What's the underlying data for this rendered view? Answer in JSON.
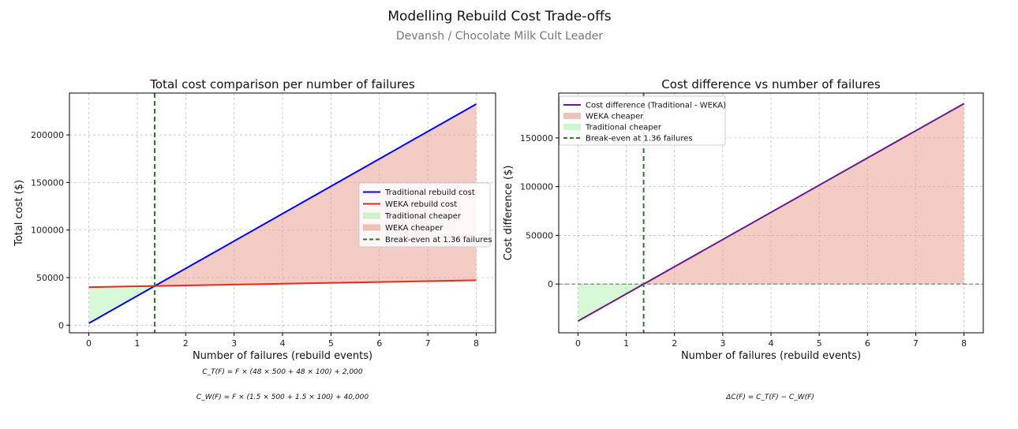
{
  "figure": {
    "title": "Modelling Rebuild Cost Trade-offs",
    "subtitle": "Devansh / Chocolate Milk Cult Leader"
  },
  "chart_data": [
    {
      "type": "line",
      "title": "Total cost comparison per number of failures",
      "xlabel": "Number of failures (rebuild events)",
      "ylabel": "Total cost ($)",
      "xlim": [
        -0.4,
        8.4
      ],
      "ylim": [
        -8000,
        244000
      ],
      "x_ticks": [
        0,
        1,
        2,
        3,
        4,
        5,
        6,
        7,
        8
      ],
      "y_ticks": [
        0,
        50000,
        100000,
        150000,
        200000
      ],
      "grid": true,
      "legend_position": "center-right",
      "x": [
        0,
        8
      ],
      "series": [
        {
          "name": "Traditional rebuild cost",
          "color": "#0000ff",
          "values": [
            2000,
            232400
          ]
        },
        {
          "name": "WEKA rebuild cost",
          "color": "#e8291c",
          "values": [
            40000,
            47200
          ]
        }
      ],
      "fills": [
        {
          "name": "Traditional cheaper",
          "color": "#90ee90",
          "opacity": 0.35
        },
        {
          "name": "WEKA cheaper",
          "color": "#e8a296",
          "opacity": 0.55
        }
      ],
      "break_even": {
        "name": "Break-even at 1.36 failures",
        "x": 1.36,
        "color": "#2a7a2a"
      },
      "legend": [
        "Traditional rebuild cost",
        "WEKA rebuild cost",
        "Traditional cheaper",
        "WEKA cheaper",
        "Break-even at 1.36 failures"
      ],
      "formulas": [
        "C_T(F) = F × (48 × 500 + 48 × 100) + 2,000",
        "C_W(F) = F × (1.5 × 500 + 1.5 × 100) + 40,000"
      ]
    },
    {
      "type": "line",
      "title": "Cost difference vs number of failures",
      "xlabel": "Number of failures (rebuild events)",
      "ylabel": "Cost difference ($)",
      "xlim": [
        -0.4,
        8.4
      ],
      "ylim": [
        -50000,
        196000
      ],
      "x_ticks": [
        0,
        1,
        2,
        3,
        4,
        5,
        6,
        7,
        8
      ],
      "y_ticks": [
        0,
        50000,
        100000,
        150000
      ],
      "grid": true,
      "legend_position": "upper-left",
      "x": [
        0,
        8
      ],
      "series": [
        {
          "name": "Cost difference (Traditional - WEKA)",
          "color": "#6a1b8a",
          "values": [
            -38000,
            185200
          ]
        }
      ],
      "fills": [
        {
          "name": "WEKA cheaper",
          "color": "#e8a296",
          "opacity": 0.55
        },
        {
          "name": "Traditional cheaper",
          "color": "#90ee90",
          "opacity": 0.35
        }
      ],
      "zero_line": {
        "y": 0,
        "color": "#555555"
      },
      "break_even": {
        "name": "Break-even at 1.36 failures",
        "x": 1.36,
        "color": "#2a7a2a"
      },
      "legend": [
        "Cost difference (Traditional - WEKA)",
        "WEKA cheaper",
        "Traditional cheaper",
        "Break-even at 1.36 failures"
      ],
      "formulas": [
        "ΔC(F) = C_T(F) − C_W(F)"
      ]
    }
  ]
}
